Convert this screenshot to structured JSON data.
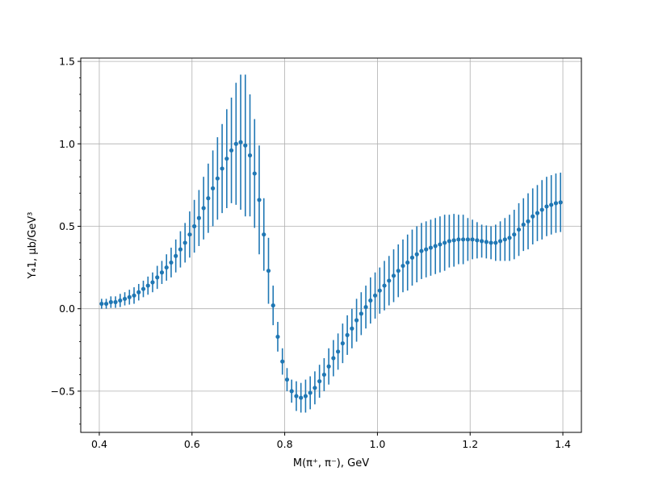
{
  "chart_data": {
    "type": "scatter",
    "title": "",
    "xlabel": "M(π⁺, π⁻), GeV",
    "ylabel": "Y₄1, μb/GeV³",
    "xlim": [
      0.36,
      1.44
    ],
    "ylim": [
      -0.75,
      1.52
    ],
    "grid": true,
    "legend": "none",
    "marker_color": "#1f77b4",
    "x_ticks": [
      0.4,
      0.6,
      0.8,
      1.0,
      1.2,
      1.4
    ],
    "x_tick_labels": [
      "0.4",
      "0.6",
      "0.8",
      "1.0",
      "1.2",
      "1.4"
    ],
    "y_ticks": [
      -0.5,
      0.0,
      0.5,
      1.0,
      1.5
    ],
    "y_tick_labels": [
      "−0.5",
      "0.0",
      "0.5",
      "1.0",
      "1.5"
    ],
    "series": [
      {
        "x": [
          0.405,
          0.415,
          0.425,
          0.435,
          0.445,
          0.455,
          0.465,
          0.475,
          0.485,
          0.495,
          0.505,
          0.515,
          0.525,
          0.535,
          0.545,
          0.555,
          0.565,
          0.575,
          0.585,
          0.595,
          0.605,
          0.615,
          0.625,
          0.635,
          0.645,
          0.655,
          0.665,
          0.675,
          0.685,
          0.695,
          0.705,
          0.715,
          0.725,
          0.735,
          0.745,
          0.755,
          0.765,
          0.775,
          0.785,
          0.795,
          0.805,
          0.815,
          0.825,
          0.835,
          0.845,
          0.855,
          0.865,
          0.875,
          0.885,
          0.895,
          0.905,
          0.915,
          0.925,
          0.935,
          0.945,
          0.955,
          0.965,
          0.975,
          0.985,
          0.995,
          1.005,
          1.015,
          1.025,
          1.035,
          1.045,
          1.055,
          1.065,
          1.075,
          1.085,
          1.095,
          1.105,
          1.115,
          1.125,
          1.135,
          1.145,
          1.155,
          1.165,
          1.175,
          1.185,
          1.195,
          1.205,
          1.215,
          1.225,
          1.235,
          1.245,
          1.255,
          1.265,
          1.275,
          1.285,
          1.295,
          1.305,
          1.315,
          1.325,
          1.335,
          1.345,
          1.355,
          1.365,
          1.375,
          1.385,
          1.395
        ],
        "y": [
          0.03,
          0.03,
          0.04,
          0.04,
          0.05,
          0.06,
          0.07,
          0.08,
          0.1,
          0.12,
          0.14,
          0.16,
          0.19,
          0.22,
          0.25,
          0.28,
          0.32,
          0.36,
          0.4,
          0.45,
          0.5,
          0.55,
          0.61,
          0.67,
          0.73,
          0.79,
          0.85,
          0.91,
          0.96,
          1.0,
          1.01,
          0.99,
          0.93,
          0.82,
          0.66,
          0.45,
          0.23,
          0.02,
          -0.17,
          -0.32,
          -0.43,
          -0.5,
          -0.53,
          -0.54,
          -0.53,
          -0.51,
          -0.48,
          -0.44,
          -0.4,
          -0.35,
          -0.3,
          -0.26,
          -0.21,
          -0.16,
          -0.12,
          -0.07,
          -0.03,
          0.01,
          0.05,
          0.08,
          0.11,
          0.14,
          0.17,
          0.2,
          0.23,
          0.26,
          0.28,
          0.31,
          0.33,
          0.35,
          0.36,
          0.37,
          0.38,
          0.39,
          0.4,
          0.41,
          0.415,
          0.42,
          0.42,
          0.42,
          0.42,
          0.415,
          0.41,
          0.405,
          0.4,
          0.4,
          0.41,
          0.42,
          0.43,
          0.45,
          0.48,
          0.51,
          0.53,
          0.56,
          0.58,
          0.6,
          0.62,
          0.63,
          0.64,
          0.645
        ],
        "yerr": [
          0.03,
          0.03,
          0.035,
          0.035,
          0.04,
          0.04,
          0.045,
          0.05,
          0.05,
          0.05,
          0.055,
          0.06,
          0.07,
          0.07,
          0.08,
          0.09,
          0.1,
          0.11,
          0.12,
          0.14,
          0.16,
          0.17,
          0.19,
          0.21,
          0.23,
          0.25,
          0.27,
          0.3,
          0.32,
          0.37,
          0.41,
          0.43,
          0.37,
          0.33,
          0.33,
          0.22,
          0.2,
          0.12,
          0.09,
          0.08,
          0.07,
          0.07,
          0.09,
          0.09,
          0.1,
          0.1,
          0.1,
          0.1,
          0.1,
          0.11,
          0.11,
          0.11,
          0.12,
          0.12,
          0.12,
          0.13,
          0.13,
          0.13,
          0.14,
          0.14,
          0.14,
          0.15,
          0.15,
          0.16,
          0.16,
          0.16,
          0.17,
          0.17,
          0.17,
          0.17,
          0.17,
          0.17,
          0.17,
          0.17,
          0.17,
          0.16,
          0.16,
          0.15,
          0.15,
          0.13,
          0.12,
          0.11,
          0.1,
          0.1,
          0.1,
          0.11,
          0.12,
          0.13,
          0.14,
          0.15,
          0.16,
          0.16,
          0.17,
          0.17,
          0.17,
          0.18,
          0.18,
          0.18,
          0.18,
          0.18
        ]
      }
    ]
  }
}
